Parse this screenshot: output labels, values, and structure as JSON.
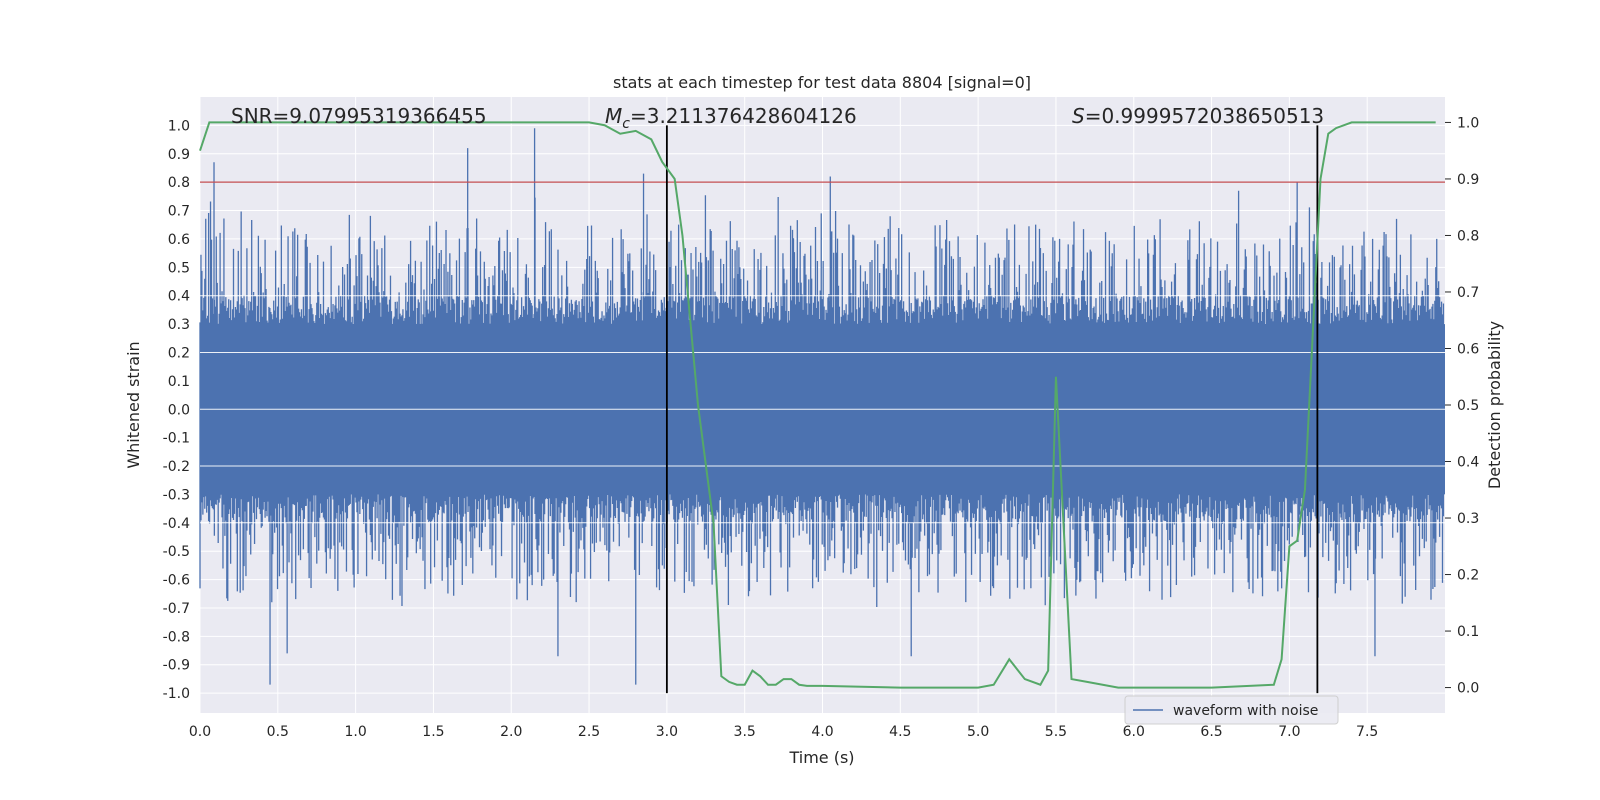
{
  "chart_data": {
    "type": "line",
    "title": "stats at each timestep for test data 8804 [signal=0]",
    "xlabel": "Time (s)",
    "ylabel": "Whitened strain",
    "ylabel_right": "Detection probability",
    "xlim": [
      0.0,
      8.0
    ],
    "ylim_left": [
      -1.07,
      1.1
    ],
    "ylim_right": [
      -0.045,
      1.045
    ],
    "x_ticks": [
      0.0,
      0.5,
      1.0,
      1.5,
      2.0,
      2.5,
      3.0,
      3.5,
      4.0,
      4.5,
      5.0,
      5.5,
      6.0,
      6.5,
      7.0,
      7.5
    ],
    "x_tick_labels": [
      "0.0",
      "0.5",
      "1.0",
      "1.5",
      "2.0",
      "2.5",
      "3.0",
      "3.5",
      "4.0",
      "4.5",
      "5.0",
      "5.5",
      "6.0",
      "6.5",
      "7.0",
      "7.5"
    ],
    "y_left_ticks": [
      1.0,
      0.9,
      0.8,
      0.7,
      0.6,
      0.5,
      0.4,
      0.3,
      0.2,
      0.1,
      0.0,
      -0.1,
      -0.2,
      -0.3,
      -0.4,
      -0.5,
      -0.6,
      -0.7,
      -0.8,
      -0.9,
      -1.0
    ],
    "y_left_tick_labels": [
      "1.0",
      "0.9",
      "0.8",
      "0.7",
      "0.6",
      "0.5",
      "0.4",
      "0.3",
      "0.2",
      "0.1",
      "0.0",
      "-0.1",
      "-0.2",
      "-0.3",
      "-0.4",
      "-0.5",
      "-0.6",
      "-0.7",
      "-0.8",
      "-0.9",
      "-1.0"
    ],
    "y_right_ticks": [
      1.0,
      0.9,
      0.8,
      0.7,
      0.6,
      0.5,
      0.4,
      0.3,
      0.2,
      0.1,
      0.0
    ],
    "y_right_tick_labels": [
      "1.0",
      "0.9",
      "0.8",
      "0.7",
      "0.6",
      "0.5",
      "0.4",
      "0.3",
      "0.2",
      "0.1",
      "0.0"
    ],
    "annotations": {
      "snr": "SNR=9.07995319366455",
      "mc": "M",
      "mc_sub": "c",
      "mc_value": "=3.211376428604126",
      "s": "S",
      "s_value": "=0.9999572038650513"
    },
    "threshold_line": {
      "y": 0.8,
      "color": "#c44e52"
    },
    "vertical_lines": [
      3.0,
      7.18
    ],
    "legend": {
      "label": "waveform with noise",
      "placement": "lower-right"
    },
    "series": [
      {
        "name": "waveform with noise",
        "axis": "left",
        "color": "#4c72b0",
        "kind": "noise",
        "core_amplitude": 0.4,
        "notable_peaks": [
          {
            "x": 0.09,
            "y": 0.87
          },
          {
            "x": 0.45,
            "y": -0.97
          },
          {
            "x": 0.56,
            "y": -0.86
          },
          {
            "x": 1.72,
            "y": 0.92
          },
          {
            "x": 2.15,
            "y": 0.99
          },
          {
            "x": 2.3,
            "y": -0.87
          },
          {
            "x": 2.8,
            "y": -0.97
          },
          {
            "x": 2.85,
            "y": 0.83
          },
          {
            "x": 4.05,
            "y": 0.82
          },
          {
            "x": 4.57,
            "y": -0.87
          },
          {
            "x": 7.55,
            "y": -0.87
          },
          {
            "x": 7.05,
            "y": 0.8
          }
        ]
      },
      {
        "name": "Detection probability",
        "axis": "right",
        "color": "#55a868",
        "x": [
          0.0,
          0.06,
          0.5,
          1.0,
          1.5,
          2.0,
          2.5,
          2.6,
          2.7,
          2.8,
          2.9,
          2.97,
          3.05,
          3.1,
          3.2,
          3.3,
          3.35,
          3.4,
          3.45,
          3.5,
          3.55,
          3.6,
          3.65,
          3.7,
          3.75,
          3.8,
          3.85,
          3.9,
          4.0,
          4.5,
          5.0,
          5.1,
          5.2,
          5.3,
          5.4,
          5.45,
          5.5,
          5.6,
          5.7,
          5.8,
          5.9,
          6.0,
          6.5,
          6.9,
          6.95,
          7.0,
          7.05,
          7.1,
          7.2,
          7.25,
          7.3,
          7.4,
          7.45,
          7.5,
          7.94
        ],
        "y": [
          0.95,
          1.0,
          1.0,
          1.0,
          1.0,
          1.0,
          1.0,
          0.995,
          0.98,
          0.985,
          0.97,
          0.93,
          0.9,
          0.8,
          0.5,
          0.29,
          0.02,
          0.01,
          0.005,
          0.005,
          0.03,
          0.02,
          0.005,
          0.005,
          0.015,
          0.015,
          0.005,
          0.003,
          0.003,
          0.0,
          0.0,
          0.005,
          0.05,
          0.015,
          0.005,
          0.03,
          0.55,
          0.015,
          0.01,
          0.005,
          0.0,
          0.0,
          0.0,
          0.005,
          0.05,
          0.25,
          0.26,
          0.35,
          0.9,
          0.98,
          0.99,
          1.0,
          1.0,
          1.0,
          1.0
        ]
      }
    ]
  }
}
